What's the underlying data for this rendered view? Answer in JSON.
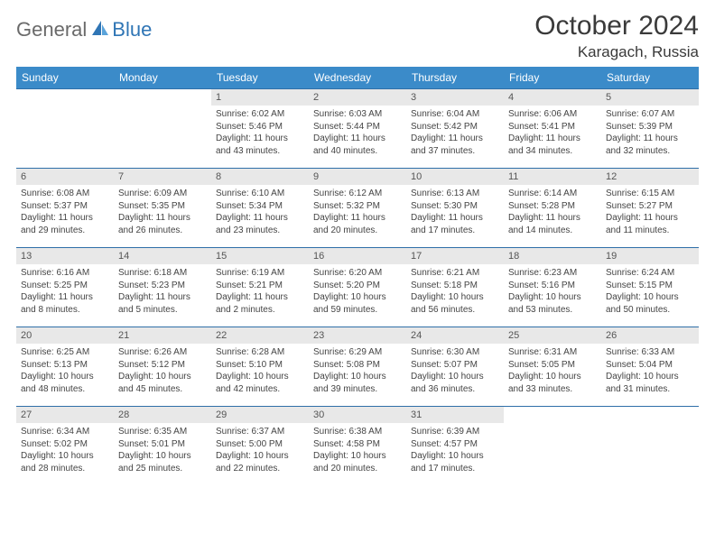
{
  "brand": {
    "general": "General",
    "blue": "Blue"
  },
  "title": "October 2024",
  "location": "Karagach, Russia",
  "colors": {
    "header_bg": "#3b8bc9",
    "header_text": "#ffffff",
    "row_border": "#2f6fa8",
    "daynum_bg": "#e8e8e8",
    "text": "#444444",
    "brand_gray": "#6a6a6a",
    "brand_blue": "#2f75b5"
  },
  "day_headers": [
    "Sunday",
    "Monday",
    "Tuesday",
    "Wednesday",
    "Thursday",
    "Friday",
    "Saturday"
  ],
  "weeks": [
    [
      {
        "n": "",
        "empty": true
      },
      {
        "n": "",
        "empty": true
      },
      {
        "n": "1",
        "sr": "Sunrise: 6:02 AM",
        "ss": "Sunset: 5:46 PM",
        "d1": "Daylight: 11 hours",
        "d2": "and 43 minutes."
      },
      {
        "n": "2",
        "sr": "Sunrise: 6:03 AM",
        "ss": "Sunset: 5:44 PM",
        "d1": "Daylight: 11 hours",
        "d2": "and 40 minutes."
      },
      {
        "n": "3",
        "sr": "Sunrise: 6:04 AM",
        "ss": "Sunset: 5:42 PM",
        "d1": "Daylight: 11 hours",
        "d2": "and 37 minutes."
      },
      {
        "n": "4",
        "sr": "Sunrise: 6:06 AM",
        "ss": "Sunset: 5:41 PM",
        "d1": "Daylight: 11 hours",
        "d2": "and 34 minutes."
      },
      {
        "n": "5",
        "sr": "Sunrise: 6:07 AM",
        "ss": "Sunset: 5:39 PM",
        "d1": "Daylight: 11 hours",
        "d2": "and 32 minutes."
      }
    ],
    [
      {
        "n": "6",
        "sr": "Sunrise: 6:08 AM",
        "ss": "Sunset: 5:37 PM",
        "d1": "Daylight: 11 hours",
        "d2": "and 29 minutes."
      },
      {
        "n": "7",
        "sr": "Sunrise: 6:09 AM",
        "ss": "Sunset: 5:35 PM",
        "d1": "Daylight: 11 hours",
        "d2": "and 26 minutes."
      },
      {
        "n": "8",
        "sr": "Sunrise: 6:10 AM",
        "ss": "Sunset: 5:34 PM",
        "d1": "Daylight: 11 hours",
        "d2": "and 23 minutes."
      },
      {
        "n": "9",
        "sr": "Sunrise: 6:12 AM",
        "ss": "Sunset: 5:32 PM",
        "d1": "Daylight: 11 hours",
        "d2": "and 20 minutes."
      },
      {
        "n": "10",
        "sr": "Sunrise: 6:13 AM",
        "ss": "Sunset: 5:30 PM",
        "d1": "Daylight: 11 hours",
        "d2": "and 17 minutes."
      },
      {
        "n": "11",
        "sr": "Sunrise: 6:14 AM",
        "ss": "Sunset: 5:28 PM",
        "d1": "Daylight: 11 hours",
        "d2": "and 14 minutes."
      },
      {
        "n": "12",
        "sr": "Sunrise: 6:15 AM",
        "ss": "Sunset: 5:27 PM",
        "d1": "Daylight: 11 hours",
        "d2": "and 11 minutes."
      }
    ],
    [
      {
        "n": "13",
        "sr": "Sunrise: 6:16 AM",
        "ss": "Sunset: 5:25 PM",
        "d1": "Daylight: 11 hours",
        "d2": "and 8 minutes."
      },
      {
        "n": "14",
        "sr": "Sunrise: 6:18 AM",
        "ss": "Sunset: 5:23 PM",
        "d1": "Daylight: 11 hours",
        "d2": "and 5 minutes."
      },
      {
        "n": "15",
        "sr": "Sunrise: 6:19 AM",
        "ss": "Sunset: 5:21 PM",
        "d1": "Daylight: 11 hours",
        "d2": "and 2 minutes."
      },
      {
        "n": "16",
        "sr": "Sunrise: 6:20 AM",
        "ss": "Sunset: 5:20 PM",
        "d1": "Daylight: 10 hours",
        "d2": "and 59 minutes."
      },
      {
        "n": "17",
        "sr": "Sunrise: 6:21 AM",
        "ss": "Sunset: 5:18 PM",
        "d1": "Daylight: 10 hours",
        "d2": "and 56 minutes."
      },
      {
        "n": "18",
        "sr": "Sunrise: 6:23 AM",
        "ss": "Sunset: 5:16 PM",
        "d1": "Daylight: 10 hours",
        "d2": "and 53 minutes."
      },
      {
        "n": "19",
        "sr": "Sunrise: 6:24 AM",
        "ss": "Sunset: 5:15 PM",
        "d1": "Daylight: 10 hours",
        "d2": "and 50 minutes."
      }
    ],
    [
      {
        "n": "20",
        "sr": "Sunrise: 6:25 AM",
        "ss": "Sunset: 5:13 PM",
        "d1": "Daylight: 10 hours",
        "d2": "and 48 minutes."
      },
      {
        "n": "21",
        "sr": "Sunrise: 6:26 AM",
        "ss": "Sunset: 5:12 PM",
        "d1": "Daylight: 10 hours",
        "d2": "and 45 minutes."
      },
      {
        "n": "22",
        "sr": "Sunrise: 6:28 AM",
        "ss": "Sunset: 5:10 PM",
        "d1": "Daylight: 10 hours",
        "d2": "and 42 minutes."
      },
      {
        "n": "23",
        "sr": "Sunrise: 6:29 AM",
        "ss": "Sunset: 5:08 PM",
        "d1": "Daylight: 10 hours",
        "d2": "and 39 minutes."
      },
      {
        "n": "24",
        "sr": "Sunrise: 6:30 AM",
        "ss": "Sunset: 5:07 PM",
        "d1": "Daylight: 10 hours",
        "d2": "and 36 minutes."
      },
      {
        "n": "25",
        "sr": "Sunrise: 6:31 AM",
        "ss": "Sunset: 5:05 PM",
        "d1": "Daylight: 10 hours",
        "d2": "and 33 minutes."
      },
      {
        "n": "26",
        "sr": "Sunrise: 6:33 AM",
        "ss": "Sunset: 5:04 PM",
        "d1": "Daylight: 10 hours",
        "d2": "and 31 minutes."
      }
    ],
    [
      {
        "n": "27",
        "sr": "Sunrise: 6:34 AM",
        "ss": "Sunset: 5:02 PM",
        "d1": "Daylight: 10 hours",
        "d2": "and 28 minutes."
      },
      {
        "n": "28",
        "sr": "Sunrise: 6:35 AM",
        "ss": "Sunset: 5:01 PM",
        "d1": "Daylight: 10 hours",
        "d2": "and 25 minutes."
      },
      {
        "n": "29",
        "sr": "Sunrise: 6:37 AM",
        "ss": "Sunset: 5:00 PM",
        "d1": "Daylight: 10 hours",
        "d2": "and 22 minutes."
      },
      {
        "n": "30",
        "sr": "Sunrise: 6:38 AM",
        "ss": "Sunset: 4:58 PM",
        "d1": "Daylight: 10 hours",
        "d2": "and 20 minutes."
      },
      {
        "n": "31",
        "sr": "Sunrise: 6:39 AM",
        "ss": "Sunset: 4:57 PM",
        "d1": "Daylight: 10 hours",
        "d2": "and 17 minutes."
      },
      {
        "n": "",
        "empty": true
      },
      {
        "n": "",
        "empty": true
      }
    ]
  ]
}
